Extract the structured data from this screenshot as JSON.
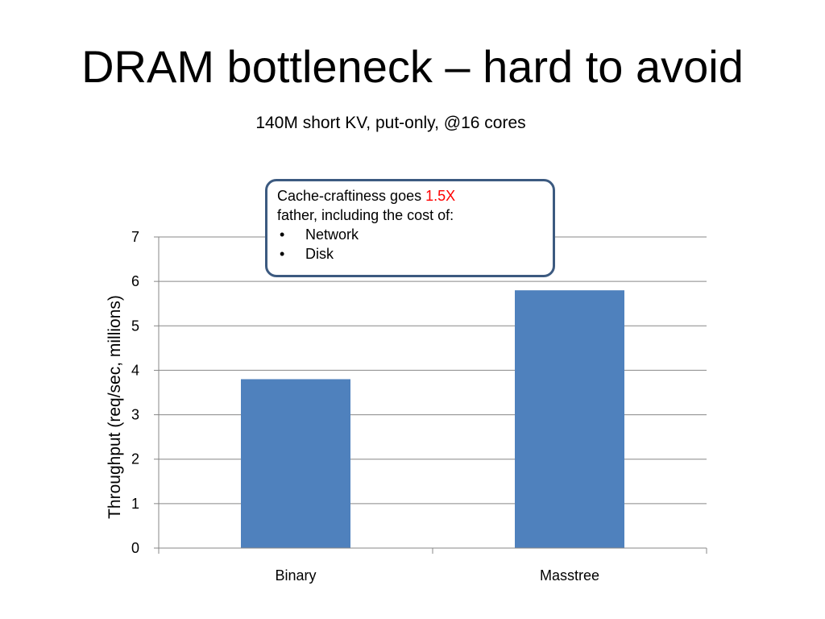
{
  "slide": {
    "title": "DRAM bottleneck – hard to avoid",
    "subtitle": "140M short KV, put-only, @16 cores"
  },
  "callout": {
    "text_before": "Cache-craftiness goes ",
    "highlight": "1.5X",
    "text_after": "father, including the cost of:",
    "bullets": [
      "Network",
      "Disk"
    ],
    "highlight_color": "#ff0000",
    "border_color": "#3c5a80"
  },
  "chart_data": {
    "type": "bar",
    "title": "",
    "xlabel": "",
    "ylabel": "Throughput (req/sec, millions)",
    "categories": [
      "Binary",
      "Masstree"
    ],
    "series": [
      {
        "values": [
          3.8,
          5.8
        ],
        "color": "#4f81bd"
      }
    ],
    "ylim": [
      0,
      7
    ],
    "yticks": [
      0,
      1,
      2,
      3,
      4,
      5,
      6,
      7
    ],
    "grid": true,
    "legend": "none"
  }
}
